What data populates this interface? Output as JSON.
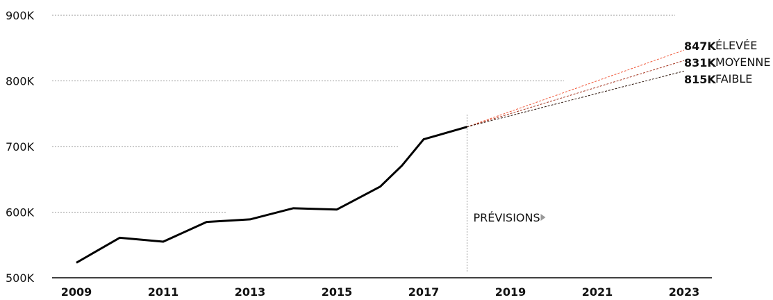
{
  "chart_data": {
    "type": "line",
    "x": [
      2009,
      2010,
      2011,
      2012,
      2013,
      2014,
      2015,
      2016,
      2016.5,
      2017,
      2018
    ],
    "series": [
      {
        "color": "#000000",
        "x": [
          2009,
          2010,
          2011,
          2012,
          2013,
          2014,
          2015,
          2016,
          2016.5,
          2017,
          2018
        ],
        "values": [
          523000,
          561000,
          555000,
          585000,
          589000,
          606000,
          604000,
          639000,
          671000,
          711000,
          730000
        ]
      },
      {
        "name": "ÉLEVÉE",
        "color": "#f05a3c",
        "x": [
          2018,
          2023
        ],
        "values": [
          730000,
          847000
        ],
        "value_labels": [
          null,
          "847K"
        ]
      },
      {
        "name": "MOYENNE",
        "color": "#a3331f",
        "x": [
          2018,
          2023
        ],
        "values": [
          730000,
          831000
        ],
        "value_labels": [
          null,
          "831K"
        ]
      },
      {
        "name": "FAIBLE",
        "color": "#2a1208",
        "x": [
          2018,
          2023
        ],
        "values": [
          730000,
          815000
        ],
        "value_labels": [
          null,
          "815K"
        ]
      }
    ],
    "annotation": "PRÉVISIONS",
    "forecast_start": 2018,
    "xlim": [
      2008.5,
      2024.2
    ],
    "xticks": [
      2009,
      2011,
      2013,
      2015,
      2017,
      2019,
      2021,
      2023
    ],
    "ylim": [
      500000,
      900000
    ],
    "yticks": [
      {
        "value": 500000,
        "label": "500K"
      },
      {
        "value": 600000,
        "label": "600K"
      },
      {
        "value": 700000,
        "label": "700K"
      },
      {
        "value": 800000,
        "label": "800K"
      },
      {
        "value": 900000,
        "label": "900K"
      }
    ],
    "grid": true
  }
}
